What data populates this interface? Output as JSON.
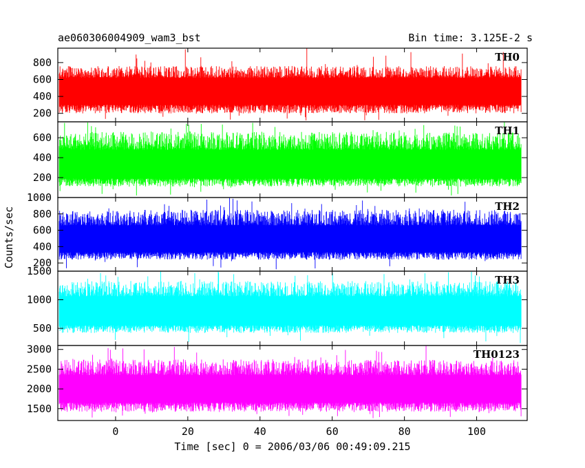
{
  "header": {
    "title": "ae060306004909_wam3_bst",
    "bin_time": "Bin time: 3.125E-2 s"
  },
  "chart_data": {
    "type": "line",
    "title": "ae060306004909_wam3_bst",
    "xlabel": "Time [sec] 0 = 2006/03/06 00:49:09.215",
    "ylabel": "Counts/sec",
    "xlim": [
      -16,
      114
    ],
    "x_data_range": [
      -15.6,
      112.4
    ],
    "x_ticks": [
      0,
      20,
      40,
      60,
      80,
      100
    ],
    "panels": [
      {
        "name": "TH0",
        "color": "#ff0000",
        "ylim": [
          100,
          970
        ],
        "y_ticks": [
          200,
          400,
          600,
          800
        ],
        "band": [
          300,
          620
        ],
        "envelope": [
          200,
          760
        ],
        "extreme": [
          100,
          970
        ],
        "mean": 455
      },
      {
        "name": "TH1",
        "color": "#00ff00",
        "ylim": [
          0,
          760
        ],
        "y_ticks": [
          200,
          400,
          600
        ],
        "band": [
          190,
          480
        ],
        "envelope": [
          110,
          660
        ],
        "extreme": [
          20,
          760
        ],
        "mean": 320
      },
      {
        "name": "TH2",
        "color": "#0000ff",
        "ylim": [
          100,
          1000
        ],
        "y_ticks": [
          200,
          400,
          600,
          800,
          1000
        ],
        "band": [
          330,
          660
        ],
        "envelope": [
          240,
          850
        ],
        "extreme": [
          110,
          1000
        ],
        "mean": 500
      },
      {
        "name": "TH3",
        "color": "#00ffff",
        "ylim": [
          200,
          1500
        ],
        "y_ticks": [
          500,
          1000,
          1500
        ],
        "band": [
          550,
          1060
        ],
        "envelope": [
          420,
          1330
        ],
        "extreme": [
          240,
          1500
        ],
        "mean": 800
      },
      {
        "name": "TH0123",
        "color": "#ff00ff",
        "ylim": [
          1200,
          3100
        ],
        "y_ticks": [
          1500,
          2000,
          2500,
          3000
        ],
        "band": [
          1650,
          2350
        ],
        "envelope": [
          1420,
          2750
        ],
        "extreme": [
          1260,
          3100
        ],
        "mean": 2000
      }
    ]
  }
}
